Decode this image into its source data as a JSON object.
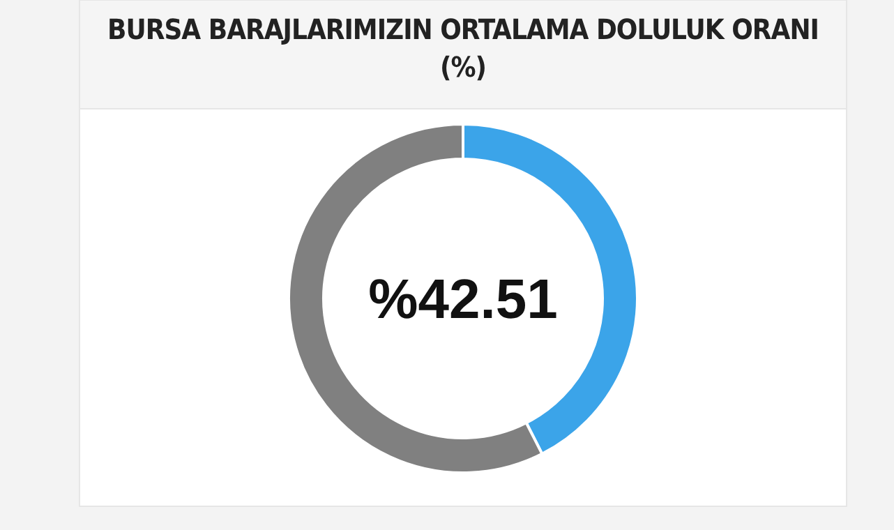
{
  "chart_data": {
    "type": "donut",
    "title": "BURSA BARAJLARIMIZIN ORTALAMA DOLULUK ORANI\n(%)",
    "categories": [
      null,
      null
    ],
    "values": [
      42.51,
      57.49
    ],
    "colors": [
      "#3ba4e9",
      "#808080"
    ],
    "annotations": [
      "%42.51"
    ],
    "legend": false
  }
}
